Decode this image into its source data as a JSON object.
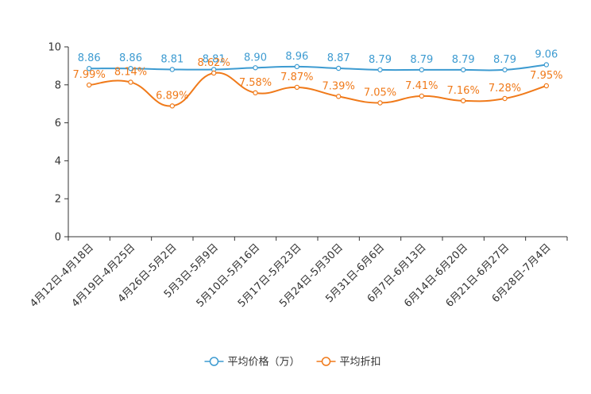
{
  "chart_data": {
    "type": "line",
    "title": "",
    "xlabel": "",
    "ylabel": "",
    "ylim": [
      0,
      10
    ],
    "yticks": [
      0,
      2,
      4,
      6,
      8,
      10
    ],
    "grid": false,
    "legend_position": "bottom-center",
    "categories": [
      "4月12日-4月18日",
      "4月19日-4月25日",
      "4月26日-5月2日",
      "5月3日-5月9日",
      "5月10日-5月16日",
      "5月17日-5月23日",
      "5月24日-5月30日",
      "5月31日-6月6日",
      "6月7日-6月13日",
      "6月14日-6月20日",
      "6月21日-6月27日",
      "6月28日-7月4日"
    ],
    "series": [
      {
        "name": "平均价格（万）",
        "color": "#3d9bd1",
        "values": [
          8.86,
          8.86,
          8.81,
          8.81,
          8.9,
          8.96,
          8.87,
          8.79,
          8.79,
          8.79,
          8.79,
          9.06
        ],
        "labels": [
          "8.86",
          "8.86",
          "8.81",
          "8.81",
          "8.90",
          "8.96",
          "8.87",
          "8.79",
          "8.79",
          "8.79",
          "8.79",
          "9.06"
        ]
      },
      {
        "name": "平均折扣",
        "color": "#f07a1a",
        "values": [
          7.99,
          8.14,
          6.89,
          8.62,
          7.58,
          7.87,
          7.39,
          7.05,
          7.41,
          7.16,
          7.28,
          7.95
        ],
        "labels": [
          "7.99%",
          "8.14%",
          "6.89%",
          "8.62%",
          "7.58%",
          "7.87%",
          "7.39%",
          "7.05%",
          "7.41%",
          "7.16%",
          "7.28%",
          "7.95%"
        ]
      }
    ]
  }
}
